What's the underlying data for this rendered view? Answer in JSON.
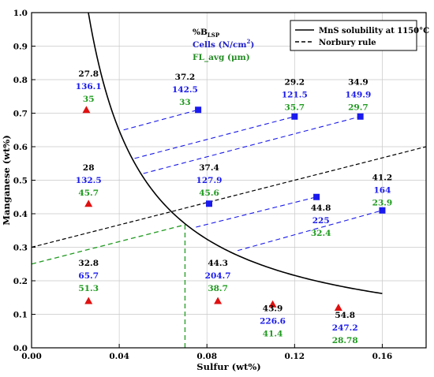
{
  "chart_data": {
    "type": "scatter",
    "xlabel": "Sulfur (wt%)",
    "ylabel": "Manganese (wt%)",
    "xlim": [
      0.0,
      0.18
    ],
    "ylim": [
      0.0,
      1.0
    ],
    "x_ticks": [
      "0.00",
      "0.04",
      "0.08",
      "0.12",
      "0.16"
    ],
    "x_tick_values": [
      0.0,
      0.04,
      0.08,
      0.12,
      0.16
    ],
    "y_ticks": [
      "0.0",
      "0.1",
      "0.2",
      "0.3",
      "0.4",
      "0.5",
      "0.6",
      "0.7",
      "0.8",
      "0.9",
      "1.0"
    ],
    "y_tick_values": [
      0.0,
      0.1,
      0.2,
      0.3,
      0.4,
      0.5,
      0.6,
      0.7,
      0.8,
      0.9,
      1.0
    ],
    "grid": true,
    "legend": {
      "placement": "top-right",
      "entries": [
        {
          "label": "MnS solubility at 1150°C",
          "style": "solid"
        },
        {
          "label": "Norbury rule",
          "style": "dashed"
        }
      ]
    },
    "key": {
      "lines": [
        {
          "text": "%B",
          "sub": "LSP",
          "color": "#000000"
        },
        {
          "text": "Cells (N/cm",
          "sup": "2",
          "tail": ")",
          "color": "#2222cc"
        },
        {
          "text": "FL_avg (μm)",
          "color": "#228B22"
        }
      ]
    },
    "colors": {
      "red": "#e01010",
      "blue": "#1a1aee",
      "green": "#1f9a1f",
      "black": "#000000"
    },
    "solubility_curve": {
      "x_from": 0.008,
      "x_to": 0.16,
      "k": 0.02592
    },
    "norbury_line": {
      "x": [
        0.0,
        0.18
      ],
      "y": [
        0.3,
        0.6
      ]
    },
    "green_helper": {
      "x": [
        0.0,
        0.07
      ],
      "y": [
        0.25,
        0.367
      ],
      "drop_x": 0.07
    },
    "series": [
      {
        "name": "red-triangles",
        "marker": "triangle",
        "points": [
          {
            "x": 0.025,
            "y": 0.71,
            "labels": [
              "27.8",
              "136.1",
              "35"
            ],
            "label_x": 0.026,
            "label_y": 0.81
          },
          {
            "x": 0.026,
            "y": 0.43,
            "labels": [
              "28",
              "132.5",
              "45.7"
            ],
            "label_x": 0.026,
            "label_y": 0.53
          },
          {
            "x": 0.026,
            "y": 0.14,
            "labels": [
              "32.8",
              "65.7",
              "51.3"
            ],
            "label_x": 0.026,
            "label_y": 0.245
          },
          {
            "x": 0.085,
            "y": 0.14,
            "labels": [
              "44.3",
              "204.7",
              "38.7"
            ],
            "label_x": 0.085,
            "label_y": 0.245
          },
          {
            "x": 0.11,
            "y": 0.13,
            "labels": [
              "43.9",
              "226.6",
              "41.4"
            ],
            "label_x": 0.11,
            "label_y": 0.11
          },
          {
            "x": 0.14,
            "y": 0.12,
            "labels": [
              "54.8",
              "247.2",
              "28.78"
            ],
            "label_x": 0.143,
            "label_y": 0.09
          }
        ]
      },
      {
        "name": "blue-squares",
        "marker": "square",
        "points": [
          {
            "x": 0.076,
            "y": 0.71,
            "labels": [
              "37.2",
              "142.5",
              "33"
            ],
            "label_x": 0.07,
            "label_y": 0.8,
            "tie_to": [
              0.042,
              0.65
            ]
          },
          {
            "x": 0.12,
            "y": 0.69,
            "labels": [
              "29.2",
              "121.5",
              "35.7"
            ],
            "label_x": 0.12,
            "label_y": 0.785,
            "tie_to": [
              0.047,
              0.565
            ]
          },
          {
            "x": 0.15,
            "y": 0.69,
            "labels": [
              "34.9",
              "149.9",
              "29.7"
            ],
            "label_x": 0.149,
            "label_y": 0.785,
            "tie_to": [
              0.051,
              0.52
            ]
          },
          {
            "x": 0.081,
            "y": 0.43,
            "labels": [
              "37.4",
              "127.9",
              "45.6"
            ],
            "label_x": 0.081,
            "label_y": 0.53
          },
          {
            "x": 0.13,
            "y": 0.45,
            "labels": [
              "44.8",
              "225",
              "32.4"
            ],
            "label_x": 0.132,
            "label_y": 0.41,
            "tie_to": [
              0.075,
              0.36
            ]
          },
          {
            "x": 0.16,
            "y": 0.41,
            "labels": [
              "41.2",
              "164",
              "23.9"
            ],
            "label_x": 0.16,
            "label_y": 0.5,
            "tie_to": [
              0.094,
              0.29
            ]
          }
        ]
      }
    ]
  }
}
